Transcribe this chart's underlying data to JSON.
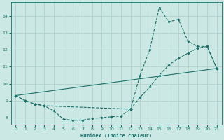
{
  "xlabel": "Humidex (Indice chaleur)",
  "xlim": [
    -0.5,
    21.5
  ],
  "ylim": [
    7.6,
    14.8
  ],
  "yticks": [
    8,
    9,
    10,
    11,
    12,
    13,
    14
  ],
  "xticks": [
    0,
    1,
    2,
    3,
    4,
    5,
    6,
    7,
    8,
    9,
    10,
    11,
    12,
    13,
    14,
    15,
    16,
    17,
    18,
    19,
    20,
    21
  ],
  "bg_color": "#cce8e4",
  "grid_color": "#aaccca",
  "line_color": "#1a7068",
  "line_straight": {
    "x": [
      0,
      21
    ],
    "y": [
      9.3,
      10.9
    ]
  },
  "line_u": {
    "x": [
      0,
      1,
      2,
      3,
      4,
      5,
      6,
      7,
      8,
      9,
      10,
      11,
      12,
      13,
      14,
      15,
      16,
      17,
      18,
      19,
      20,
      21
    ],
    "y": [
      9.3,
      9.0,
      8.8,
      8.7,
      8.4,
      7.9,
      7.85,
      7.85,
      7.95,
      8.0,
      8.05,
      8.1,
      8.5,
      9.2,
      9.8,
      10.5,
      11.1,
      11.5,
      11.8,
      12.1,
      12.2,
      10.9
    ]
  },
  "line_peak": {
    "x": [
      0,
      1,
      2,
      3,
      12,
      13,
      14,
      15,
      16,
      17,
      18,
      19,
      20,
      21
    ],
    "y": [
      9.3,
      9.0,
      8.8,
      8.7,
      8.5,
      10.5,
      12.0,
      14.5,
      13.65,
      13.8,
      12.5,
      12.2,
      12.2,
      10.9
    ]
  }
}
